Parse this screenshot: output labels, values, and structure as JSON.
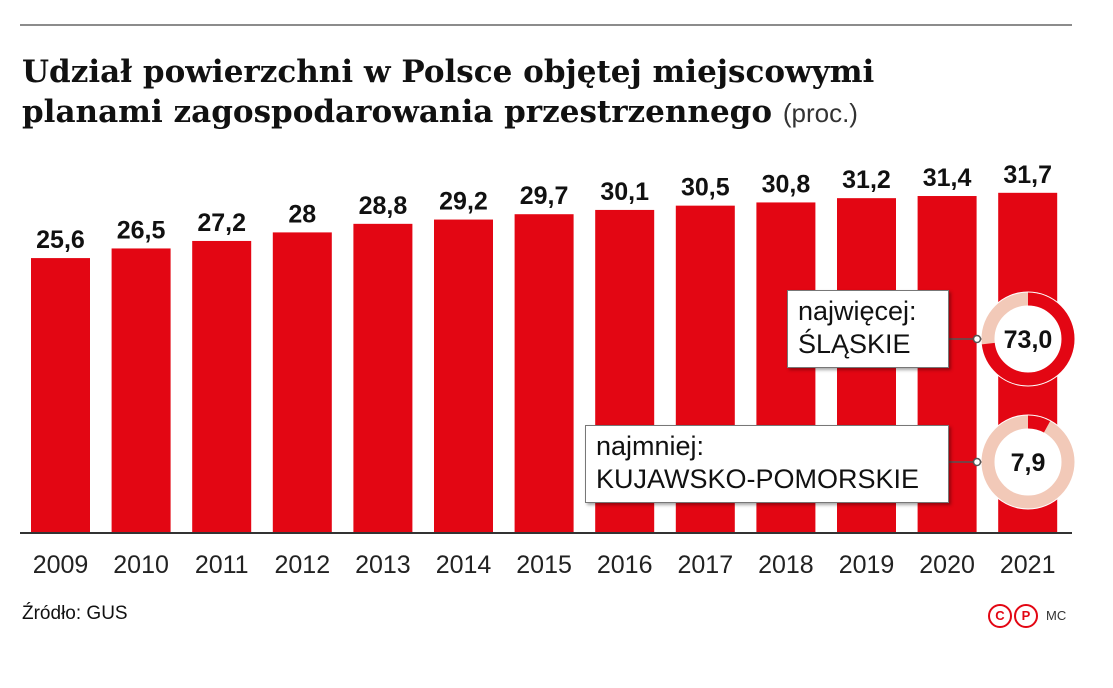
{
  "title_line1": "Udział powierzchni w Polsce objętej miejscowymi",
  "title_line2": "planami zagospodarowania przestrzennego",
  "title_unit": "(proc.)",
  "source": "Źródło: GUS",
  "logo_letters": [
    "C",
    "P"
  ],
  "author": "MC",
  "colors": {
    "bar": "#e30613",
    "donut_track": "#f2c9b8",
    "axis": "#333333"
  },
  "chart_data": {
    "type": "bar",
    "categories": [
      "2009",
      "2010",
      "2011",
      "2012",
      "2013",
      "2014",
      "2015",
      "2016",
      "2017",
      "2018",
      "2019",
      "2020",
      "2021"
    ],
    "values": [
      25.6,
      26.5,
      27.2,
      28,
      28.8,
      29.2,
      29.7,
      30.1,
      30.5,
      30.8,
      31.2,
      31.4,
      31.7
    ],
    "value_labels": [
      "25,6",
      "26,5",
      "27,2",
      "28",
      "28,8",
      "29,2",
      "29,7",
      "30,1",
      "30,5",
      "30,8",
      "31,2",
      "31,4",
      "31,7"
    ],
    "ylim": [
      0,
      100
    ],
    "annotations": [
      {
        "label_line1": "najwięcej:",
        "label_line2": "ŚLĄSKIE",
        "value": 73.0,
        "value_label": "73,0"
      },
      {
        "label_line1": "najmniej:",
        "label_line2": "KUJAWSKO-POMORSKIE",
        "value": 7.9,
        "value_label": "7,9"
      }
    ]
  }
}
